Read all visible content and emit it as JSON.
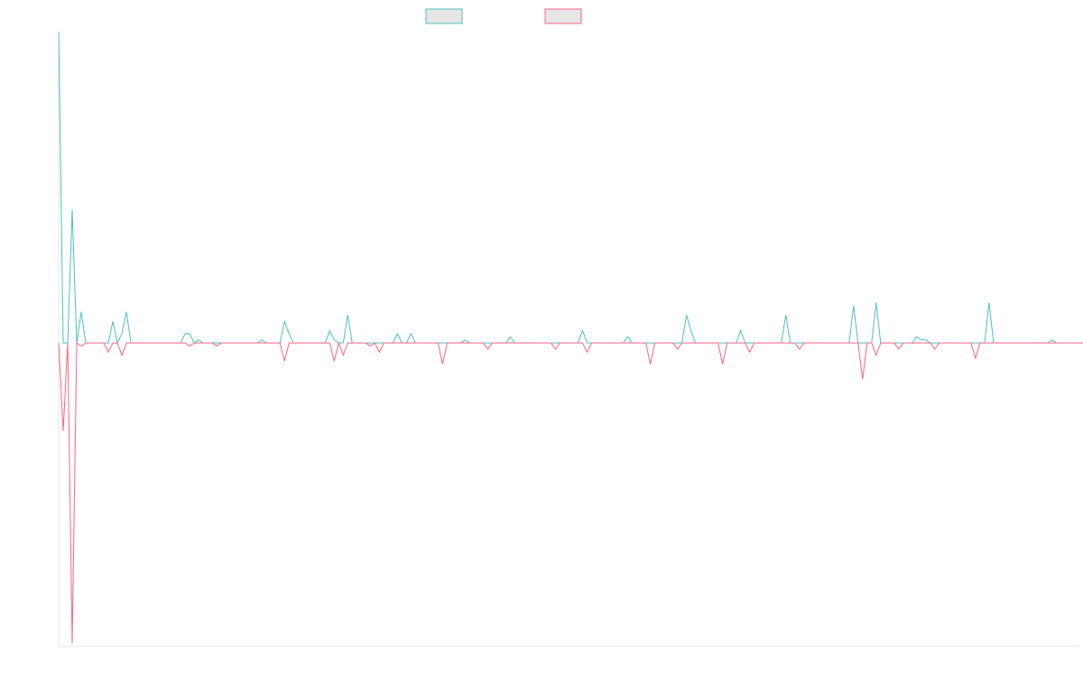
{
  "colors": {
    "background": "#ffffff",
    "axis": "#e4e4e4",
    "series_a": "#4bc0c0",
    "series_b": "#ff6384",
    "legend_fill": "#e6e6e6"
  },
  "chart_data": {
    "type": "line",
    "title": "",
    "xlabel": "",
    "ylabel": "",
    "grid": false,
    "legend_placement": "top-center",
    "ylim": [
      -100,
      100
    ],
    "x_count": 227,
    "series": [
      {
        "color": "#4bc0c0",
        "values": [
          100,
          0,
          0,
          43,
          0,
          10,
          0,
          0,
          0,
          0,
          0,
          0,
          7,
          0,
          3,
          10,
          0,
          0,
          0,
          0,
          0,
          0,
          0,
          0,
          0,
          0,
          0,
          0,
          3,
          3,
          0,
          1,
          0,
          0,
          0,
          0,
          0,
          0,
          0,
          0,
          0,
          0,
          0,
          0,
          0,
          1,
          0,
          0,
          0,
          0,
          7,
          3,
          0,
          0,
          0,
          0,
          0,
          0,
          0,
          0,
          4,
          1,
          0,
          0,
          9,
          0,
          0,
          0,
          0,
          0,
          0,
          0,
          0,
          0,
          0,
          3,
          0,
          0,
          3,
          0,
          0,
          0,
          0,
          0,
          0,
          0,
          0,
          0,
          0,
          0,
          1,
          0,
          0,
          0,
          0,
          0,
          0,
          0,
          0,
          0,
          2,
          0,
          0,
          0,
          0,
          0,
          0,
          0,
          0,
          0,
          0,
          0,
          0,
          0,
          0,
          0,
          4,
          0,
          0,
          0,
          0,
          0,
          0,
          0,
          0,
          0,
          2,
          0,
          0,
          0,
          0,
          0,
          0,
          0,
          0,
          0,
          0,
          0,
          0,
          9,
          4,
          0,
          0,
          0,
          0,
          0,
          0,
          0,
          0,
          0,
          0,
          4,
          0,
          0,
          0,
          0,
          0,
          0,
          0,
          0,
          0,
          9,
          0,
          0,
          0,
          0,
          0,
          0,
          0,
          0,
          0,
          0,
          0,
          0,
          0,
          0,
          12,
          0,
          0,
          0,
          0,
          13,
          0,
          0,
          0,
          0,
          0,
          0,
          0,
          0,
          2,
          1,
          1,
          0,
          0,
          0,
          0,
          0,
          0,
          0,
          0,
          0,
          0,
          0,
          0,
          0,
          13,
          0,
          0,
          0,
          0,
          0,
          0,
          0,
          0,
          0,
          0,
          0,
          0,
          0,
          1,
          0,
          0,
          0,
          0,
          0,
          0,
          0,
          1,
          0,
          0,
          0,
          0,
          0,
          0,
          0,
          0,
          0,
          0,
          0,
          0,
          0,
          0
        ]
      },
      {
        "color": "#ff6384",
        "values": [
          0,
          -29,
          0,
          -99,
          0,
          -1,
          0,
          0,
          0,
          0,
          0,
          -3,
          0,
          0,
          -4,
          0,
          0,
          0,
          0,
          0,
          0,
          0,
          0,
          0,
          0,
          0,
          0,
          0,
          0,
          -1,
          0,
          0,
          0,
          0,
          0,
          -1,
          0,
          0,
          0,
          0,
          0,
          0,
          0,
          0,
          0,
          0,
          0,
          0,
          0,
          0,
          -6,
          0,
          0,
          0,
          0,
          0,
          0,
          0,
          0,
          0,
          0,
          -6,
          0,
          -4,
          0,
          0,
          0,
          0,
          0,
          -1,
          0,
          -3,
          0,
          0,
          0,
          0,
          0,
          0,
          0,
          0,
          0,
          0,
          0,
          0,
          0,
          -7,
          0,
          0,
          0,
          0,
          0,
          0,
          0,
          0,
          0,
          -2,
          0,
          0,
          0,
          0,
          0,
          0,
          0,
          0,
          0,
          0,
          0,
          0,
          0,
          0,
          -2,
          0,
          0,
          0,
          0,
          0,
          0,
          -3,
          0,
          0,
          0,
          0,
          0,
          0,
          0,
          0,
          0,
          0,
          0,
          0,
          0,
          -7,
          0,
          0,
          0,
          0,
          0,
          -2,
          0,
          0,
          0,
          0,
          0,
          0,
          0,
          0,
          0,
          -7,
          0,
          0,
          0,
          0,
          0,
          -3,
          0,
          0,
          0,
          0,
          0,
          0,
          0,
          0,
          0,
          0,
          -2,
          0,
          0,
          0,
          0,
          0,
          0,
          0,
          0,
          0,
          0,
          0,
          0,
          0,
          -12,
          0,
          0,
          -4,
          0,
          0,
          0,
          0,
          -2,
          0,
          0,
          0,
          0,
          0,
          0,
          0,
          -2,
          0,
          0,
          0,
          0,
          0,
          0,
          0,
          0,
          -5,
          0,
          0,
          0,
          0,
          0,
          0,
          0,
          0,
          0,
          0,
          0,
          0,
          0,
          0,
          0,
          0,
          0,
          0,
          0,
          0,
          0,
          0,
          0,
          0,
          0,
          0,
          0,
          0,
          0,
          0,
          0,
          0,
          0,
          0
        ]
      }
    ]
  }
}
